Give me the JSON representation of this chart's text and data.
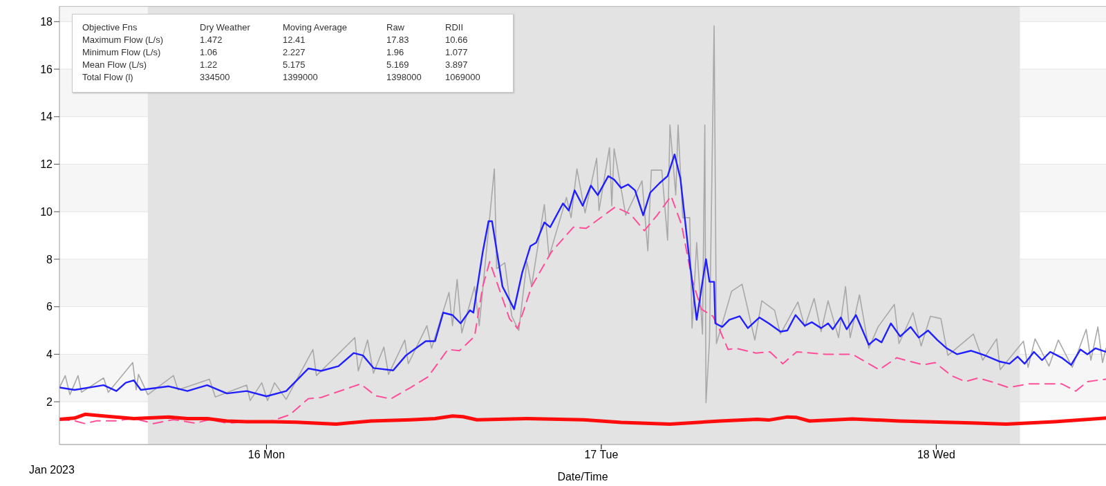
{
  "chart_data": {
    "type": "line",
    "xlabel": "Date/Time",
    "annotations": [
      "Objective Fns",
      "Dry Weather",
      "Moving Average",
      "Raw",
      "RDII",
      "Maximum Flow (L/s)",
      "1.472",
      "12.41",
      "17.83",
      "10.66",
      "Minimum Flow (L/s)",
      "1.06",
      "2.227",
      "1.96",
      "1.077",
      "Mean Flow (L/s)",
      "1.22",
      "5.175",
      "5.169",
      "3.897",
      "Total Flow (l)",
      "334500",
      "1399000",
      "1398000",
      "1069000",
      "Jan 2023"
    ],
    "xlim": [
      "2023-01-15T09:10",
      "2023-01-18T12:10"
    ],
    "xticks": [
      {
        "value": "2023-01-16",
        "label": "16 Mon"
      },
      {
        "value": "2023-01-17",
        "label": "17 Tue"
      },
      {
        "value": "2023-01-18",
        "label": "18 Wed"
      }
    ],
    "ylim": [
      0.2,
      18.65
    ],
    "yticks": [
      2,
      4,
      6,
      8,
      10,
      12,
      14,
      16,
      18
    ],
    "grid": "y",
    "legend": false,
    "marker": "none",
    "bands": [
      {
        "axis": "x",
        "from": "2023-01-15T15:30",
        "to": "2023-01-18T06:00",
        "color": "#e3e3e3"
      }
    ],
    "series": [
      {
        "color": "#a8a8a8",
        "line_style": "solid",
        "x": [
          "2023-01-15T09:10",
          "2023-01-15T09:35",
          "2023-01-15T09:55",
          "2023-01-15T10:30",
          "2023-01-15T10:45",
          "2023-01-15T12:20",
          "2023-01-15T12:40",
          "2023-01-15T14:25",
          "2023-01-15T14:40",
          "2023-01-15T14:50",
          "2023-01-15T15:30",
          "2023-01-15T17:20",
          "2023-01-15T17:40",
          "2023-01-15T19:55",
          "2023-01-15T20:20",
          "2023-01-15T22:35",
          "2023-01-15T22:50",
          "2023-01-15T23:40",
          "2023-01-16T00:05",
          "2023-01-16T00:35",
          "2023-01-16T01:25",
          "2023-01-16T03:20",
          "2023-01-16T03:35",
          "2023-01-16T06:20",
          "2023-01-16T06:35",
          "2023-01-16T07:15",
          "2023-01-16T07:40",
          "2023-01-16T08:25",
          "2023-01-16T08:45",
          "2023-01-16T09:55",
          "2023-01-16T10:10",
          "2023-01-16T11:30",
          "2023-01-16T11:50",
          "2023-01-16T13:05",
          "2023-01-16T13:20",
          "2023-01-16T13:40",
          "2023-01-16T14:00",
          "2023-01-16T14:55",
          "2023-01-16T15:15",
          "2023-01-16T16:20",
          "2023-01-16T16:30",
          "2023-01-16T17:05",
          "2023-01-16T17:35",
          "2023-01-16T18:05",
          "2023-01-16T18:40",
          "2023-01-16T19:00",
          "2023-01-16T19:55",
          "2023-01-16T20:15",
          "2023-01-16T21:30",
          "2023-01-16T21:50",
          "2023-01-16T22:15",
          "2023-01-16T22:50",
          "2023-01-16T23:40",
          "2023-01-16T23:50",
          "2023-01-17T00:35",
          "2023-01-17T00:45",
          "2023-01-17T00:55",
          "2023-01-17T01:45",
          "2023-01-17T02:55",
          "2023-01-17T03:20",
          "2023-01-17T03:35",
          "2023-01-17T04:20",
          "2023-01-17T04:45",
          "2023-01-17T04:55",
          "2023-01-17T05:20",
          "2023-01-17T05:30",
          "2023-01-17T05:50",
          "2023-01-17T06:20",
          "2023-01-17T06:30",
          "2023-01-17T06:50",
          "2023-01-17T07:15",
          "2023-01-17T07:25",
          "2023-01-17T07:30",
          "2023-01-17T07:45",
          "2023-01-17T08:05",
          "2023-01-17T08:15",
          "2023-01-17T09:20",
          "2023-01-17T10:05",
          "2023-01-17T11:00",
          "2023-01-17T11:30",
          "2023-01-17T12:25",
          "2023-01-17T12:50",
          "2023-01-17T14:05",
          "2023-01-17T14:35",
          "2023-01-17T15:15",
          "2023-01-17T15:45",
          "2023-01-17T16:15",
          "2023-01-17T17:00",
          "2023-01-17T17:30",
          "2023-01-17T17:50",
          "2023-01-17T18:30",
          "2023-01-17T19:10",
          "2023-01-17T19:50",
          "2023-01-17T21:00",
          "2023-01-17T21:20",
          "2023-01-17T22:20",
          "2023-01-17T22:55",
          "2023-01-17T23:35",
          "2023-01-18T00:20",
          "2023-01-18T00:50",
          "2023-01-18T02:40",
          "2023-01-18T03:20",
          "2023-01-18T04:20",
          "2023-01-18T04:35",
          "2023-01-18T06:15",
          "2023-01-18T06:35",
          "2023-01-18T07:05",
          "2023-01-18T08:05",
          "2023-01-18T08:45",
          "2023-01-18T09:45",
          "2023-01-18T10:45",
          "2023-01-18T11:05",
          "2023-01-18T11:35",
          "2023-01-18T11:55",
          "2023-01-18T12:10"
        ],
        "values": [
          2.6,
          3.1,
          2.3,
          3.1,
          2.4,
          3.0,
          2.4,
          3.65,
          2.5,
          3.15,
          2.3,
          3.1,
          2.5,
          2.95,
          2.2,
          2.7,
          2.05,
          2.8,
          2.05,
          2.8,
          2.1,
          4.2,
          3.1,
          4.7,
          3.3,
          4.6,
          3.2,
          4.3,
          3.15,
          4.6,
          3.6,
          5.2,
          4.25,
          6.6,
          5.2,
          7.15,
          4.9,
          6.85,
          5.2,
          11.8,
          7.6,
          7.85,
          5.6,
          5.0,
          7.9,
          6.85,
          10.3,
          8.1,
          10.6,
          9.75,
          11.8,
          9.95,
          12.25,
          10.05,
          12.7,
          10.25,
          12.65,
          9.85,
          11.3,
          8.35,
          11.75,
          11.75,
          8.8,
          13.65,
          10.7,
          13.65,
          9.75,
          9.75,
          5.1,
          8.7,
          4.85,
          13.65,
          1.96,
          4.55,
          17.83,
          4.45,
          6.65,
          6.95,
          4.6,
          6.25,
          5.85,
          4.85,
          6.2,
          5.15,
          6.35,
          4.95,
          6.25,
          4.7,
          6.85,
          4.7,
          6.5,
          4.25,
          5.15,
          6.1,
          4.45,
          5.75,
          4.35,
          5.6,
          5.5,
          3.95,
          4.85,
          3.75,
          4.65,
          3.35,
          4.55,
          3.45,
          4.65,
          3.5,
          4.6,
          3.45,
          5.05,
          3.75,
          5.15,
          3.65,
          4.25
        ]
      },
      {
        "color": "#ff4d9a",
        "line_style": "dashed",
        "x": [
          "2023-01-15T09:10",
          "2023-01-15T10:15",
          "2023-01-15T11:00",
          "2023-01-15T11:50",
          "2023-01-15T13:15",
          "2023-01-15T14:30",
          "2023-01-15T15:55",
          "2023-01-15T17:20",
          "2023-01-15T18:55",
          "2023-01-15T19:55",
          "2023-01-15T21:10",
          "2023-01-15T22:35",
          "2023-01-16T00:25",
          "2023-01-16T01:40",
          "2023-01-16T03:00",
          "2023-01-16T03:55",
          "2023-01-16T06:45",
          "2023-01-16T07:50",
          "2023-01-16T08:55",
          "2023-01-16T10:20",
          "2023-01-16T11:35",
          "2023-01-16T13:00",
          "2023-01-16T13:50",
          "2023-01-16T14:55",
          "2023-01-16T15:30",
          "2023-01-16T16:00",
          "2023-01-16T17:25",
          "2023-01-16T18:00",
          "2023-01-16T19:00",
          "2023-01-16T20:25",
          "2023-01-16T22:00",
          "2023-01-16T22:55",
          "2023-01-17T01:00",
          "2023-01-17T02:05",
          "2023-01-17T03:05",
          "2023-01-17T04:00",
          "2023-01-17T05:00",
          "2023-01-17T05:45",
          "2023-01-17T06:30",
          "2023-01-17T07:10",
          "2023-01-17T08:00",
          "2023-01-17T08:30",
          "2023-01-17T09:05",
          "2023-01-17T09:40",
          "2023-01-17T11:05",
          "2023-01-17T12:05",
          "2023-01-17T13:00",
          "2023-01-17T14:00",
          "2023-01-17T16:05",
          "2023-01-17T18:00",
          "2023-01-17T19:55",
          "2023-01-17T21:10",
          "2023-01-17T23:05",
          "2023-01-17T23:55",
          "2023-01-18T01:05",
          "2023-01-18T02:05",
          "2023-01-18T03:00",
          "2023-01-18T03:55",
          "2023-01-18T05:10",
          "2023-01-18T06:35",
          "2023-01-18T09:00",
          "2023-01-18T10:00",
          "2023-01-18T10:50",
          "2023-01-18T12:10"
        ],
        "values": [
          1.25,
          1.2,
          1.08,
          1.2,
          1.2,
          1.3,
          1.08,
          1.25,
          1.1,
          1.25,
          1.1,
          1.15,
          1.2,
          1.45,
          2.13,
          2.18,
          2.75,
          2.25,
          2.12,
          2.6,
          3.05,
          4.2,
          4.15,
          4.75,
          6.85,
          7.9,
          5.5,
          5.08,
          6.85,
          8.3,
          9.35,
          9.3,
          10.2,
          9.9,
          9.2,
          9.85,
          10.66,
          9.45,
          7.15,
          5.9,
          5.6,
          5.0,
          4.2,
          4.25,
          4.05,
          4.1,
          3.6,
          4.1,
          4.0,
          4.0,
          3.35,
          3.85,
          3.55,
          3.65,
          3.1,
          2.85,
          3.0,
          2.85,
          2.6,
          2.75,
          2.75,
          2.45,
          2.85,
          2.95
        ]
      },
      {
        "color": "#1f1fff",
        "line_style": "solid",
        "x": [
          "2023-01-15T09:10",
          "2023-01-15T10:15",
          "2023-01-15T12:20",
          "2023-01-15T13:15",
          "2023-01-15T13:55",
          "2023-01-15T14:30",
          "2023-01-15T15:00",
          "2023-01-15T17:00",
          "2023-01-15T18:20",
          "2023-01-15T19:45",
          "2023-01-15T21:10",
          "2023-01-15T22:35",
          "2023-01-16T00:00",
          "2023-01-16T01:25",
          "2023-01-16T03:00",
          "2023-01-16T03:55",
          "2023-01-16T05:10",
          "2023-01-16T06:15",
          "2023-01-16T06:55",
          "2023-01-16T07:40",
          "2023-01-16T09:05",
          "2023-01-16T10:00",
          "2023-01-16T11:25",
          "2023-01-16T12:05",
          "2023-01-16T12:40",
          "2023-01-16T13:20",
          "2023-01-16T13:55",
          "2023-01-16T14:35",
          "2023-01-16T14:50",
          "2023-01-16T15:30",
          "2023-01-16T15:55",
          "2023-01-16T16:10",
          "2023-01-16T16:55",
          "2023-01-16T17:45",
          "2023-01-16T18:20",
          "2023-01-16T18:55",
          "2023-01-16T19:20",
          "2023-01-16T19:55",
          "2023-01-16T20:20",
          "2023-01-16T21:15",
          "2023-01-16T21:40",
          "2023-01-16T22:05",
          "2023-01-16T22:40",
          "2023-01-16T23:15",
          "2023-01-16T23:45",
          "2023-01-17T00:30",
          "2023-01-17T00:55",
          "2023-01-17T01:25",
          "2023-01-17T01:55",
          "2023-01-17T02:25",
          "2023-01-17T03:00",
          "2023-01-17T03:30",
          "2023-01-17T04:10",
          "2023-01-17T04:45",
          "2023-01-17T05:15",
          "2023-01-17T05:40",
          "2023-01-17T06:15",
          "2023-01-17T06:50",
          "2023-01-17T07:15",
          "2023-01-17T07:30",
          "2023-01-17T07:45",
          "2023-01-17T08:05",
          "2023-01-17T08:10",
          "2023-01-17T08:40",
          "2023-01-17T09:10",
          "2023-01-17T09:55",
          "2023-01-17T10:30",
          "2023-01-17T11:20",
          "2023-01-17T12:00",
          "2023-01-17T12:50",
          "2023-01-17T13:20",
          "2023-01-17T13:55",
          "2023-01-17T14:35",
          "2023-01-17T15:05",
          "2023-01-17T15:45",
          "2023-01-17T16:15",
          "2023-01-17T16:35",
          "2023-01-17T17:10",
          "2023-01-17T17:35",
          "2023-01-17T18:15",
          "2023-01-17T19:10",
          "2023-01-17T19:40",
          "2023-01-17T20:05",
          "2023-01-17T20:45",
          "2023-01-17T21:25",
          "2023-01-17T22:10",
          "2023-01-17T22:45",
          "2023-01-17T23:25",
          "2023-01-18T00:05",
          "2023-01-18T00:45",
          "2023-01-18T01:30",
          "2023-01-18T02:30",
          "2023-01-18T03:30",
          "2023-01-18T04:30",
          "2023-01-18T05:15",
          "2023-01-18T05:50",
          "2023-01-18T06:20",
          "2023-01-18T07:00",
          "2023-01-18T07:35",
          "2023-01-18T08:10",
          "2023-01-18T09:00",
          "2023-01-18T09:40",
          "2023-01-18T10:20",
          "2023-01-18T10:50",
          "2023-01-18T11:25",
          "2023-01-18T12:10"
        ],
        "values": [
          2.6,
          2.5,
          2.7,
          2.45,
          2.8,
          2.9,
          2.5,
          2.65,
          2.45,
          2.7,
          2.35,
          2.45,
          2.23,
          2.45,
          3.4,
          3.3,
          3.5,
          4.05,
          3.95,
          3.42,
          3.32,
          3.95,
          4.55,
          4.55,
          5.75,
          5.65,
          5.3,
          5.85,
          5.75,
          8.3,
          9.6,
          9.6,
          6.85,
          5.9,
          7.45,
          8.55,
          8.7,
          9.55,
          9.35,
          10.35,
          10.05,
          10.9,
          10.25,
          11.1,
          10.7,
          11.5,
          11.35,
          11.0,
          11.15,
          10.9,
          9.85,
          10.8,
          11.2,
          11.5,
          12.41,
          11.4,
          8.3,
          5.45,
          7.05,
          8.0,
          7.05,
          7.05,
          5.3,
          5.15,
          5.45,
          5.6,
          5.1,
          5.55,
          5.3,
          4.95,
          5.0,
          5.65,
          5.2,
          5.35,
          5.1,
          5.3,
          5.05,
          5.55,
          5.05,
          5.65,
          4.4,
          4.65,
          4.5,
          5.3,
          4.75,
          5.15,
          4.7,
          5.0,
          4.6,
          4.25,
          4.0,
          4.15,
          3.95,
          3.7,
          3.6,
          3.9,
          3.6,
          4.1,
          3.75,
          4.1,
          3.85,
          3.55,
          4.2,
          4.0,
          4.25,
          4.1
        ]
      },
      {
        "color": "#ff0d0d",
        "line_style": "solid",
        "x": [
          "2023-01-15T09:10",
          "2023-01-15T10:15",
          "2023-01-15T11:00",
          "2023-01-15T12:20",
          "2023-01-15T14:30",
          "2023-01-15T17:00",
          "2023-01-15T18:20",
          "2023-01-15T19:45",
          "2023-01-15T21:10",
          "2023-01-15T22:35",
          "2023-01-16T00:25",
          "2023-01-16T02:10",
          "2023-01-16T05:00",
          "2023-01-16T07:30",
          "2023-01-16T10:20",
          "2023-01-16T12:05",
          "2023-01-16T13:20",
          "2023-01-16T14:05",
          "2023-01-16T15:05",
          "2023-01-16T18:40",
          "2023-01-16T22:45",
          "2023-01-17T01:25",
          "2023-01-17T04:55",
          "2023-01-17T08:30",
          "2023-01-17T11:10",
          "2023-01-17T12:00",
          "2023-01-17T13:20",
          "2023-01-17T14:00",
          "2023-01-17T14:55",
          "2023-01-17T18:00",
          "2023-01-17T21:20",
          "2023-01-18T02:30",
          "2023-01-18T05:00",
          "2023-01-18T08:30",
          "2023-01-18T12:10"
        ],
        "values": [
          1.26,
          1.31,
          1.47,
          1.4,
          1.29,
          1.36,
          1.29,
          1.29,
          1.19,
          1.16,
          1.16,
          1.14,
          1.06,
          1.19,
          1.24,
          1.29,
          1.4,
          1.37,
          1.24,
          1.29,
          1.24,
          1.13,
          1.06,
          1.19,
          1.26,
          1.23,
          1.36,
          1.34,
          1.19,
          1.28,
          1.19,
          1.11,
          1.06,
          1.16,
          1.31
        ]
      }
    ]
  }
}
